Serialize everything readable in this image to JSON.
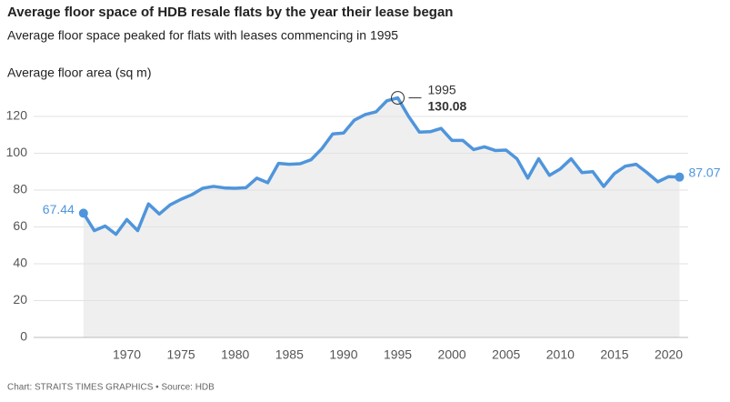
{
  "chart_data": {
    "type": "line",
    "title": "Average floor space of HDB resale flats by the year their lease began",
    "subtitle": "Average floor space peaked for flats with leases commencing in 1995",
    "y_label": "Average floor area (sq m)",
    "source": "Chart: STRAITS TIMES GRAPHICS • Source: HDB",
    "x": [
      1966,
      1967,
      1968,
      1969,
      1970,
      1971,
      1972,
      1973,
      1974,
      1975,
      1976,
      1977,
      1978,
      1979,
      1980,
      1981,
      1982,
      1983,
      1984,
      1985,
      1986,
      1987,
      1988,
      1989,
      1990,
      1991,
      1992,
      1993,
      1994,
      1995,
      1996,
      1997,
      1998,
      1999,
      2000,
      2001,
      2002,
      2003,
      2004,
      2005,
      2006,
      2007,
      2008,
      2009,
      2010,
      2011,
      2012,
      2013,
      2014,
      2015,
      2016,
      2017,
      2018,
      2019,
      2020,
      2021
    ],
    "values": [
      67.44,
      58,
      60.5,
      56,
      64,
      58,
      72.5,
      67,
      72,
      75,
      77.5,
      81,
      82,
      81.2,
      81,
      81.3,
      86.5,
      84,
      94.5,
      94,
      94.3,
      96.5,
      102.5,
      110.5,
      111,
      118,
      121,
      122.5,
      128.5,
      130.08,
      120,
      111.5,
      111.7,
      113.5,
      107,
      107,
      102,
      103.5,
      101.5,
      101.7,
      97,
      86.5,
      97,
      88,
      91.5,
      97,
      89.5,
      90,
      82,
      89,
      93,
      94,
      89.5,
      84.5,
      87.3,
      87.07
    ],
    "color": "#4f95db",
    "area_color": "#efefef",
    "xlim": [
      1961.4,
      2021.8
    ],
    "ylim": [
      0,
      140
    ],
    "xticks": [
      1970,
      1975,
      1980,
      1985,
      1990,
      1995,
      2000,
      2005,
      2010,
      2015,
      2020
    ],
    "yticks": [
      0,
      20,
      40,
      60,
      80,
      100,
      120
    ],
    "grid": true
  }
}
